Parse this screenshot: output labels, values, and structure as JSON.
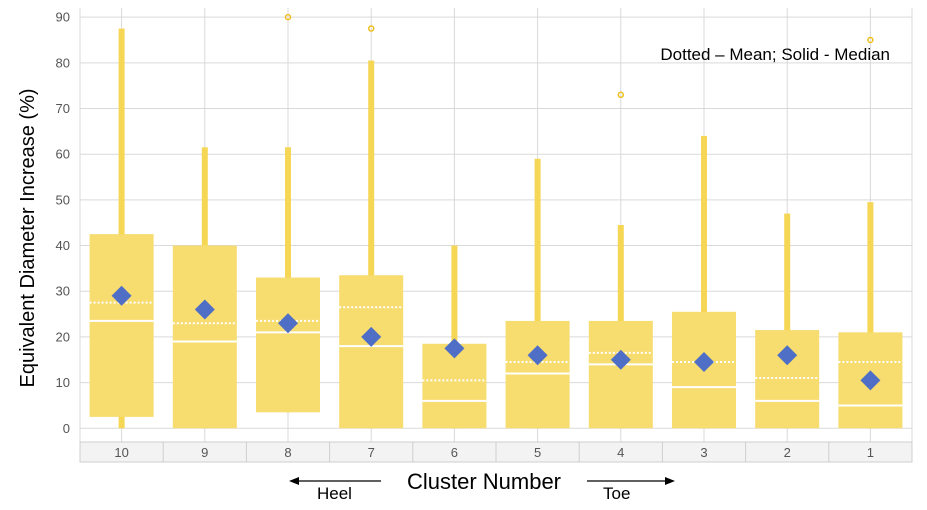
{
  "chart_data": {
    "type": "box",
    "title": "",
    "xlabel": "Cluster Number",
    "ylabel": "Equivalent Diameter Increase (%)",
    "annotation": "Dotted – Mean; Solid - Median",
    "direction_left": "Heel",
    "direction_right": "Toe",
    "ylim": [
      -3,
      92
    ],
    "yticks": [
      0,
      10,
      20,
      30,
      40,
      50,
      60,
      70,
      80,
      90
    ],
    "grid": true,
    "colors": {
      "box": "#f7dc6f",
      "whisker": "#f5d655",
      "marker": "#4f6fc6",
      "outlier": "#f0c020",
      "grid": "#d9d9d9"
    },
    "categories": [
      "10",
      "9",
      "8",
      "7",
      "6",
      "5",
      "4",
      "3",
      "2",
      "1"
    ],
    "boxes": [
      {
        "category": "10",
        "min": 0,
        "q1": 2.5,
        "median": 23.5,
        "mean": 27.5,
        "q3": 42.5,
        "max": 87.5,
        "marker": 29,
        "outliers": []
      },
      {
        "category": "9",
        "min": 0,
        "q1": 0,
        "median": 19,
        "mean": 23,
        "q3": 40,
        "max": 61.5,
        "marker": 26,
        "outliers": []
      },
      {
        "category": "8",
        "min": 3.5,
        "q1": 3.5,
        "median": 21,
        "mean": 23.5,
        "q3": 33,
        "max": 61.5,
        "marker": 23,
        "outliers": [
          90
        ]
      },
      {
        "category": "7",
        "min": 0,
        "q1": 0,
        "median": 18,
        "mean": 26.5,
        "q3": 33.5,
        "max": 80.5,
        "marker": 20,
        "outliers": [
          87.5
        ]
      },
      {
        "category": "6",
        "min": 0,
        "q1": 0,
        "median": 6,
        "mean": 10.5,
        "q3": 18.5,
        "max": 40,
        "marker": 17.5,
        "outliers": []
      },
      {
        "category": "5",
        "min": 0,
        "q1": 0,
        "median": 12,
        "mean": 14.5,
        "q3": 23.5,
        "max": 59,
        "marker": 16,
        "outliers": []
      },
      {
        "category": "4",
        "min": 0,
        "q1": 0,
        "median": 14,
        "mean": 16.5,
        "q3": 23.5,
        "max": 44.5,
        "marker": 15,
        "outliers": [
          73
        ]
      },
      {
        "category": "3",
        "min": 0,
        "q1": 0,
        "median": 9,
        "mean": 14.5,
        "q3": 25.5,
        "max": 64,
        "marker": 14.5,
        "outliers": []
      },
      {
        "category": "2",
        "min": 0,
        "q1": 0,
        "median": 6,
        "mean": 11,
        "q3": 21.5,
        "max": 47,
        "marker": 16,
        "outliers": []
      },
      {
        "category": "1",
        "min": 0,
        "q1": 0,
        "median": 5,
        "mean": 14.5,
        "q3": 21,
        "max": 49.5,
        "marker": 10.5,
        "outliers": [
          85
        ]
      }
    ]
  }
}
